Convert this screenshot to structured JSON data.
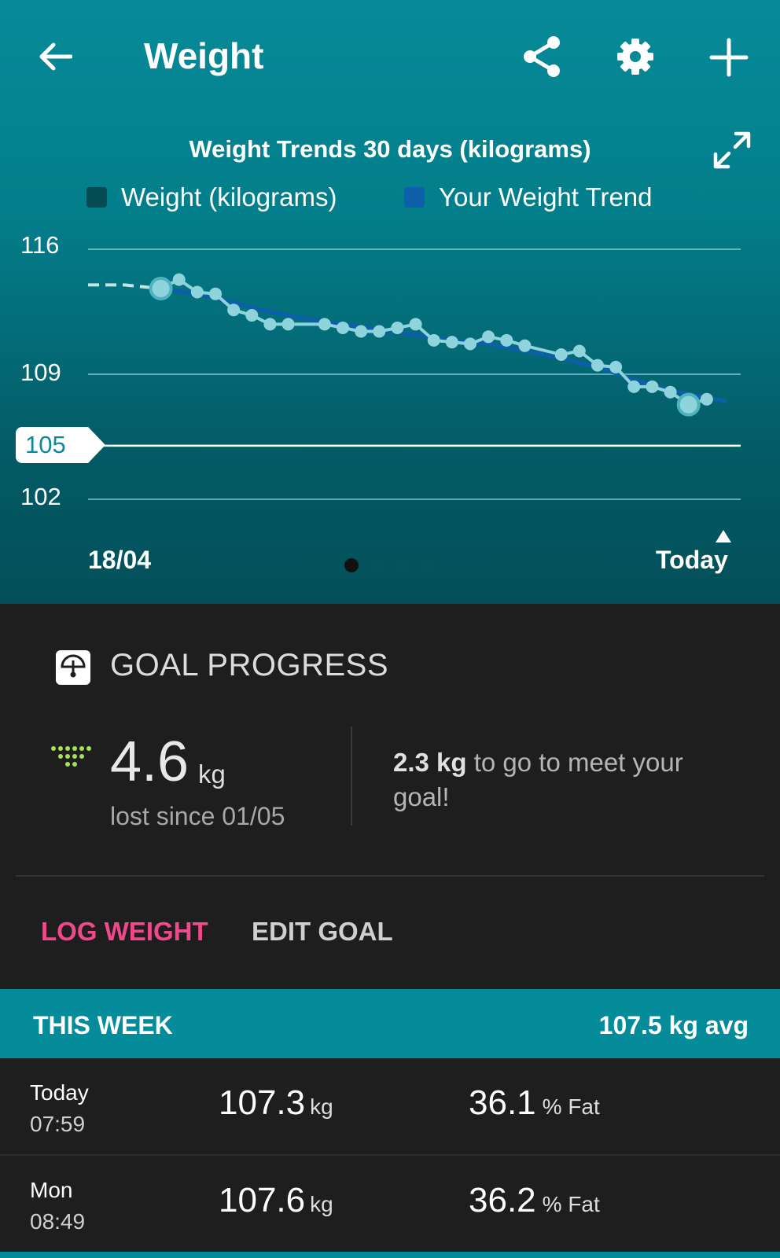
{
  "header": {
    "title": "Weight",
    "icons": [
      "arrow-left-icon",
      "share-icon",
      "gear-icon",
      "plus-icon"
    ]
  },
  "chart": {
    "expand_icon": "expand-icon",
    "x_start": "18/04",
    "x_end": "Today",
    "goal_label": "105",
    "pagination": {
      "pages": 4,
      "active": 1
    }
  },
  "chart_data": {
    "type": "line",
    "title": "Weight Trends 30 days (kilograms)",
    "legend": [
      "Weight (kilograms)",
      "Your Weight Trend"
    ],
    "legend_colors": [
      "#044b52",
      "#0c5fa8"
    ],
    "y_ticks": [
      116,
      109,
      102
    ],
    "ylim": [
      102,
      116
    ],
    "goal_line": 105,
    "x_range": [
      "18/04",
      "Today"
    ],
    "series": [
      {
        "name": "Weight (kilograms)",
        "color": "#8fd4dc",
        "x": [
          4,
          5,
          6,
          7,
          8,
          9,
          10,
          11,
          13,
          14,
          15,
          16,
          17,
          18,
          19,
          20,
          21,
          22,
          23,
          24,
          26,
          27,
          28,
          29,
          30,
          31,
          32,
          33,
          34
        ],
        "values": [
          113.8,
          114.3,
          113.6,
          113.5,
          112.6,
          112.3,
          111.8,
          111.8,
          111.8,
          111.6,
          111.4,
          111.4,
          111.6,
          111.8,
          110.9,
          110.8,
          110.7,
          111.1,
          110.9,
          110.6,
          110.1,
          110.3,
          109.5,
          109.4,
          108.3,
          108.3,
          108.0,
          107.3,
          107.6
        ]
      },
      {
        "name": "Your Weight Trend",
        "color": "#0c5fa8",
        "x": [
          0,
          2,
          4,
          6,
          8,
          10,
          12,
          14,
          16,
          18,
          20,
          22,
          24,
          26,
          28,
          30,
          32,
          34,
          35
        ],
        "values": [
          114.0,
          114.0,
          113.8,
          113.5,
          113.0,
          112.5,
          112.1,
          111.8,
          111.5,
          111.2,
          110.9,
          110.7,
          110.3,
          109.9,
          109.4,
          108.7,
          108.1,
          107.7,
          107.5
        ]
      }
    ]
  },
  "goal": {
    "icon": "scale-icon",
    "title": "GOAL PROGRESS",
    "trend_icon": "dots-trend-icon",
    "lost_value": "4.6",
    "lost_unit": "kg",
    "lost_since": "lost since 01/05",
    "togo_value": "2.3 kg",
    "togo_text": " to go to meet your goal!",
    "log_label": "LOG WEIGHT",
    "edit_label": "EDIT GOAL"
  },
  "week": {
    "label": "THIS WEEK",
    "avg": "107.5 kg avg",
    "entries": [
      {
        "day": "Today",
        "time": "07:59",
        "weight": "107.3",
        "weight_unit": "kg",
        "fat": "36.1",
        "fat_unit": "% Fat"
      },
      {
        "day": "Mon",
        "time": "08:49",
        "weight": "107.6",
        "weight_unit": "kg",
        "fat": "36.2",
        "fat_unit": "% Fat"
      }
    ]
  }
}
